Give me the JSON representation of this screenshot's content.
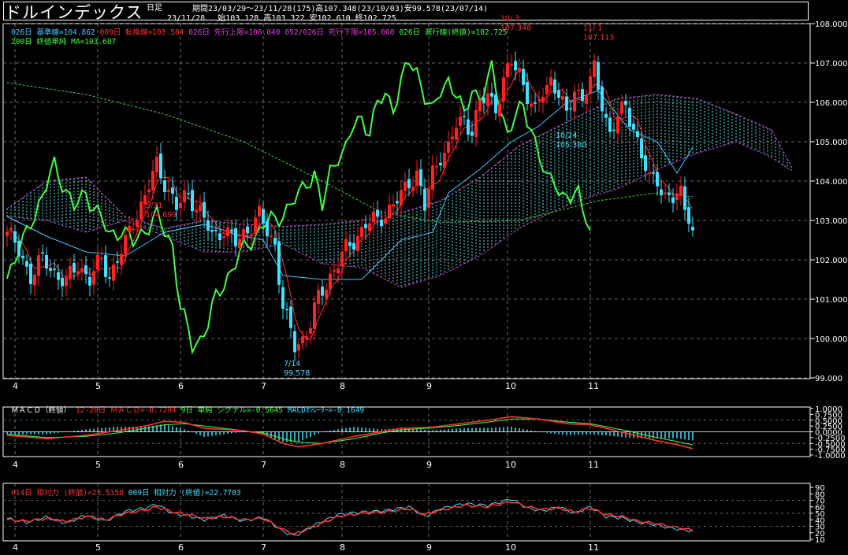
{
  "header": {
    "title": "ドルインデックス",
    "interval": "日足",
    "period_line": "期間23/03/29～23/11/28(175)高107.348(23/10/03)安99.578(23/07/14)",
    "ohlc_line": "23/11/28　 始103.128 高103.322 安102.610 終102.725"
  },
  "legend_main": {
    "line1": [
      {
        "text": "026日 基準線=104.862",
        "color": "#40c8ff"
      },
      {
        "text": "009日 転換線=103.584",
        "color": "#ff3030"
      },
      {
        "text": "026日 先行上限=106.040",
        "color": "#e040e0"
      },
      {
        "text": "052/026日 先行下限=105.060",
        "color": "#e040e0"
      },
      {
        "text": "026日 遅行線(終値)=102.725",
        "color": "#40ff40"
      }
    ],
    "line2": {
      "text": "200日 終値単純 MA=103.607",
      "color": "#40ff40"
    }
  },
  "legend_macd": [
    {
      "text": "ＭＡＣＤ（終値）",
      "color": "#ffffff"
    },
    {
      "text": "12-26日 ＭＡＣＤ=-0.7294",
      "color": "#ff3030"
    },
    {
      "text": "9日 単純 シグナル=-0.5645",
      "color": "#40ff40"
    },
    {
      "text": "MACDｵｼﾚｰﾀｰ=-0.1649",
      "color": "#40e0ff"
    }
  ],
  "legend_rsi": [
    {
      "text": "014日 相対力 (終値)=23.5358",
      "color": "#ff3030"
    },
    {
      "text": "009日 相対力 (終値)=22.7703",
      "color": "#40e0ff"
    }
  ],
  "annotations": [
    {
      "text": "5/31",
      "color": "#ff3030",
      "xi": 38,
      "y": 102.6,
      "pos": "above1"
    },
    {
      "text": "104.699",
      "color": "#ff3030",
      "xi": 38,
      "y": 102.6,
      "pos": "above2"
    },
    {
      "text": "7/14",
      "color": "#40e0ff",
      "xi": 73,
      "y": 99.578,
      "pos": "below1"
    },
    {
      "text": "99.578",
      "color": "#40e0ff",
      "xi": 73,
      "y": 99.578,
      "pos": "below2"
    },
    {
      "text": "10/ 3",
      "color": "#ff3030",
      "xi": 128,
      "y": 107.348,
      "pos": "above1"
    },
    {
      "text": "107.348",
      "color": "#ff3030",
      "xi": 128,
      "y": 107.348,
      "pos": "above2"
    },
    {
      "text": "11/ 1",
      "color": "#ff3030",
      "xi": 149,
      "y": 107.113,
      "pos": "above1"
    },
    {
      "text": "107.113",
      "color": "#ff3030",
      "xi": 149,
      "y": 107.113,
      "pos": "above2"
    },
    {
      "text": "10/24",
      "color": "#40e0ff",
      "xi": 142,
      "y": 105.38,
      "pos": "below1"
    },
    {
      "text": "105.380",
      "color": "#40e0ff",
      "xi": 142,
      "y": 105.38,
      "pos": "below2"
    }
  ],
  "chart_data": {
    "type": "candlestick",
    "n_bars": 175,
    "price_axis": {
      "min": 99.0,
      "max": 108.0,
      "ticks": [
        "99.000",
        "100.000",
        "101.000",
        "102.000",
        "103.000",
        "104.000",
        "105.000",
        "106.000",
        "107.000",
        "108.000"
      ]
    },
    "macd_axis": {
      "min": -1.0,
      "max": 1.0,
      "ticks": [
        "1.0000",
        "0.7500",
        "0.5000",
        "0.2500",
        "0.0000",
        "-0.2500",
        "-0.5000",
        "-0.7500",
        "-1.0000"
      ]
    },
    "rsi_axis": {
      "min": 10,
      "max": 90,
      "ticks": [
        "90",
        "80",
        "70",
        "60",
        "50",
        "40",
        "30",
        "20",
        "10"
      ]
    },
    "month_labels": [
      {
        "label": "4",
        "xi": 2
      },
      {
        "label": "5",
        "xi": 23
      },
      {
        "label": "6",
        "xi": 44
      },
      {
        "label": "7",
        "xi": 65
      },
      {
        "label": "8",
        "xi": 85
      },
      {
        "label": "9",
        "xi": 107
      },
      {
        "label": "10",
        "xi": 127
      },
      {
        "label": "11",
        "xi": 148
      }
    ],
    "close_key": [
      [
        0,
        102.7
      ],
      [
        3,
        102.2
      ],
      [
        6,
        101.6
      ],
      [
        9,
        102.0
      ],
      [
        12,
        101.7
      ],
      [
        15,
        101.4
      ],
      [
        18,
        101.9
      ],
      [
        21,
        101.5
      ],
      [
        24,
        102.0
      ],
      [
        26,
        101.6
      ],
      [
        30,
        102.4
      ],
      [
        32,
        103.0
      ],
      [
        35,
        103.6
      ],
      [
        38,
        104.4
      ],
      [
        40,
        104.0
      ],
      [
        43,
        103.3
      ],
      [
        46,
        103.7
      ],
      [
        49,
        103.2
      ],
      [
        52,
        102.6
      ],
      [
        55,
        102.8
      ],
      [
        58,
        102.4
      ],
      [
        61,
        102.8
      ],
      [
        64,
        103.1
      ],
      [
        66,
        102.7
      ],
      [
        68,
        102.4
      ],
      [
        70,
        100.8
      ],
      [
        73,
        99.8
      ],
      [
        75,
        100.0
      ],
      [
        77,
        100.4
      ],
      [
        79,
        101.0
      ],
      [
        82,
        101.6
      ],
      [
        85,
        102.1
      ],
      [
        88,
        102.5
      ],
      [
        91,
        102.9
      ],
      [
        94,
        103.0
      ],
      [
        97,
        103.3
      ],
      [
        100,
        103.6
      ],
      [
        102,
        104.0
      ],
      [
        104,
        104.2
      ],
      [
        106,
        103.3
      ],
      [
        108,
        104.2
      ],
      [
        110,
        104.7
      ],
      [
        112,
        104.8
      ],
      [
        114,
        105.4
      ],
      [
        116,
        105.6
      ],
      [
        118,
        105.3
      ],
      [
        120,
        105.9
      ],
      [
        122,
        106.2
      ],
      [
        124,
        105.9
      ],
      [
        126,
        106.5
      ],
      [
        128,
        107.0
      ],
      [
        130,
        106.8
      ],
      [
        132,
        106.2
      ],
      [
        134,
        105.7
      ],
      [
        136,
        106.3
      ],
      [
        138,
        106.6
      ],
      [
        140,
        106.2
      ],
      [
        142,
        105.6
      ],
      [
        144,
        106.4
      ],
      [
        146,
        106.1
      ],
      [
        148,
        106.5
      ],
      [
        149,
        106.8
      ],
      [
        151,
        106.0
      ],
      [
        153,
        105.2
      ],
      [
        155,
        105.6
      ],
      [
        157,
        105.9
      ],
      [
        159,
        105.4
      ],
      [
        161,
        104.6
      ],
      [
        163,
        104.0
      ],
      [
        165,
        104.1
      ],
      [
        167,
        103.6
      ],
      [
        169,
        103.5
      ],
      [
        171,
        103.7
      ],
      [
        172,
        103.4
      ],
      [
        173,
        103.2
      ],
      [
        174,
        102.72
      ]
    ],
    "sma200_key": [
      [
        0,
        106.5
      ],
      [
        20,
        106.2
      ],
      [
        40,
        105.7
      ],
      [
        60,
        105.0
      ],
      [
        80,
        104.0
      ],
      [
        95,
        103.2
      ],
      [
        110,
        102.95
      ],
      [
        130,
        103.0
      ],
      [
        150,
        103.5
      ],
      [
        165,
        103.7
      ],
      [
        174,
        103.6
      ]
    ],
    "kijun_key": [
      [
        0,
        103.1
      ],
      [
        10,
        102.6
      ],
      [
        20,
        102.2
      ],
      [
        30,
        102.1
      ],
      [
        40,
        102.7
      ],
      [
        50,
        102.9
      ],
      [
        60,
        102.6
      ],
      [
        65,
        102.5
      ],
      [
        70,
        101.6
      ],
      [
        80,
        101.5
      ],
      [
        90,
        101.5
      ],
      [
        100,
        102.5
      ],
      [
        108,
        102.7
      ],
      [
        112,
        103.7
      ],
      [
        120,
        104.3
      ],
      [
        128,
        105.0
      ],
      [
        135,
        105.4
      ],
      [
        142,
        106.0
      ],
      [
        150,
        106.3
      ],
      [
        158,
        105.3
      ],
      [
        165,
        105.0
      ],
      [
        170,
        104.2
      ],
      [
        174,
        104.86
      ]
    ],
    "cloud_upper_key": [
      [
        0,
        103.3
      ],
      [
        10,
        104.0
      ],
      [
        20,
        104.1
      ],
      [
        30,
        103.1
      ],
      [
        40,
        102.8
      ],
      [
        50,
        103.0
      ],
      [
        60,
        102.9
      ],
      [
        70,
        102.85
      ],
      [
        80,
        102.9
      ],
      [
        90,
        103.0
      ],
      [
        100,
        103.2
      ],
      [
        110,
        103.5
      ],
      [
        120,
        104.1
      ],
      [
        130,
        104.9
      ],
      [
        140,
        105.4
      ],
      [
        148,
        105.8
      ],
      [
        155,
        106.1
      ],
      [
        165,
        106.2
      ],
      [
        175,
        106.1
      ],
      [
        185,
        105.7
      ],
      [
        194,
        105.3
      ],
      [
        200,
        104.2
      ]
    ],
    "cloud_lower_key": [
      [
        0,
        103.1
      ],
      [
        10,
        103.0
      ],
      [
        20,
        102.7
      ],
      [
        30,
        103.0
      ],
      [
        40,
        102.6
      ],
      [
        50,
        102.2
      ],
      [
        60,
        102.2
      ],
      [
        70,
        102.4
      ],
      [
        80,
        101.9
      ],
      [
        90,
        101.8
      ],
      [
        100,
        101.3
      ],
      [
        110,
        101.6
      ],
      [
        120,
        102.1
      ],
      [
        130,
        102.8
      ],
      [
        140,
        103.3
      ],
      [
        148,
        103.6
      ],
      [
        155,
        103.8
      ],
      [
        165,
        104.3
      ],
      [
        175,
        104.7
      ],
      [
        185,
        105.0
      ],
      [
        194,
        104.6
      ],
      [
        200,
        104.2
      ]
    ],
    "macd_key": [
      [
        0,
        -0.15
      ],
      [
        10,
        -0.3
      ],
      [
        20,
        -0.15
      ],
      [
        28,
        0.05
      ],
      [
        35,
        0.25
      ],
      [
        40,
        0.45
      ],
      [
        45,
        0.4
      ],
      [
        50,
        0.15
      ],
      [
        55,
        0.1
      ],
      [
        60,
        0.05
      ],
      [
        65,
        -0.1
      ],
      [
        70,
        -0.5
      ],
      [
        74,
        -0.65
      ],
      [
        80,
        -0.5
      ],
      [
        88,
        -0.2
      ],
      [
        95,
        0.0
      ],
      [
        100,
        0.15
      ],
      [
        108,
        0.2
      ],
      [
        115,
        0.35
      ],
      [
        122,
        0.5
      ],
      [
        128,
        0.65
      ],
      [
        135,
        0.55
      ],
      [
        142,
        0.35
      ],
      [
        148,
        0.3
      ],
      [
        152,
        0.15
      ],
      [
        158,
        -0.1
      ],
      [
        164,
        -0.35
      ],
      [
        170,
        -0.55
      ],
      [
        174,
        -0.73
      ]
    ],
    "signal_key": [
      [
        0,
        -0.1
      ],
      [
        10,
        -0.25
      ],
      [
        20,
        -0.2
      ],
      [
        28,
        -0.05
      ],
      [
        35,
        0.15
      ],
      [
        40,
        0.3
      ],
      [
        45,
        0.35
      ],
      [
        50,
        0.25
      ],
      [
        55,
        0.15
      ],
      [
        60,
        0.05
      ],
      [
        65,
        -0.05
      ],
      [
        70,
        -0.3
      ],
      [
        74,
        -0.45
      ],
      [
        80,
        -0.5
      ],
      [
        88,
        -0.3
      ],
      [
        95,
        -0.05
      ],
      [
        100,
        0.08
      ],
      [
        108,
        0.17
      ],
      [
        115,
        0.28
      ],
      [
        122,
        0.42
      ],
      [
        128,
        0.55
      ],
      [
        135,
        0.55
      ],
      [
        142,
        0.42
      ],
      [
        148,
        0.35
      ],
      [
        152,
        0.22
      ],
      [
        158,
        0.02
      ],
      [
        164,
        -0.22
      ],
      [
        170,
        -0.42
      ],
      [
        174,
        -0.56
      ]
    ],
    "rsi14_key": [
      [
        0,
        40
      ],
      [
        5,
        38
      ],
      [
        10,
        42
      ],
      [
        15,
        37
      ],
      [
        20,
        45
      ],
      [
        25,
        40
      ],
      [
        30,
        50
      ],
      [
        35,
        55
      ],
      [
        38,
        60
      ],
      [
        42,
        52
      ],
      [
        46,
        48
      ],
      [
        50,
        42
      ],
      [
        55,
        45
      ],
      [
        60,
        40
      ],
      [
        65,
        42
      ],
      [
        70,
        25
      ],
      [
        73,
        18
      ],
      [
        78,
        30
      ],
      [
        84,
        45
      ],
      [
        90,
        50
      ],
      [
        96,
        52
      ],
      [
        102,
        57
      ],
      [
        106,
        48
      ],
      [
        110,
        55
      ],
      [
        116,
        62
      ],
      [
        122,
        60
      ],
      [
        128,
        68
      ],
      [
        132,
        60
      ],
      [
        136,
        56
      ],
      [
        140,
        58
      ],
      [
        144,
        52
      ],
      [
        148,
        58
      ],
      [
        152,
        48
      ],
      [
        156,
        45
      ],
      [
        160,
        38
      ],
      [
        164,
        35
      ],
      [
        168,
        30
      ],
      [
        172,
        26
      ],
      [
        174,
        23.5
      ]
    ],
    "rsi9_key": [
      [
        0,
        42
      ],
      [
        5,
        36
      ],
      [
        10,
        44
      ],
      [
        15,
        35
      ],
      [
        20,
        47
      ],
      [
        25,
        38
      ],
      [
        30,
        53
      ],
      [
        35,
        58
      ],
      [
        38,
        64
      ],
      [
        42,
        50
      ],
      [
        46,
        46
      ],
      [
        50,
        40
      ],
      [
        55,
        47
      ],
      [
        60,
        38
      ],
      [
        65,
        44
      ],
      [
        70,
        22
      ],
      [
        73,
        15
      ],
      [
        78,
        32
      ],
      [
        84,
        48
      ],
      [
        90,
        52
      ],
      [
        96,
        54
      ],
      [
        102,
        60
      ],
      [
        106,
        45
      ],
      [
        110,
        57
      ],
      [
        116,
        65
      ],
      [
        122,
        62
      ],
      [
        128,
        72
      ],
      [
        132,
        58
      ],
      [
        136,
        54
      ],
      [
        140,
        60
      ],
      [
        144,
        50
      ],
      [
        148,
        60
      ],
      [
        152,
        45
      ],
      [
        156,
        43
      ],
      [
        160,
        36
      ],
      [
        164,
        33
      ],
      [
        168,
        28
      ],
      [
        172,
        24
      ],
      [
        174,
        22.8
      ]
    ]
  }
}
